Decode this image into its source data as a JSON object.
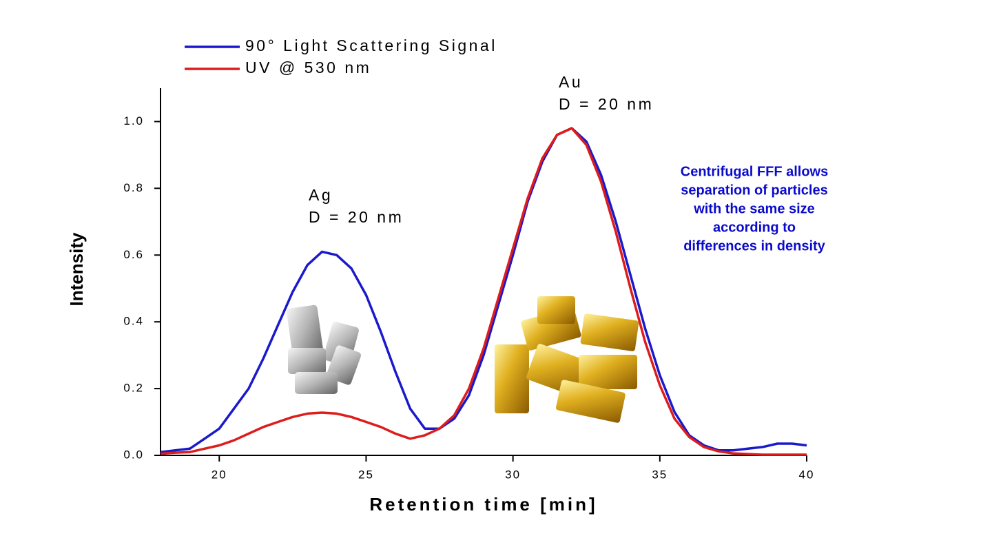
{
  "chart_data": {
    "type": "line",
    "x_label": "Retention time [min]",
    "y_label": "Intensity",
    "xlim": [
      18,
      40
    ],
    "xticks": [
      20,
      25,
      30,
      35,
      40
    ],
    "ylim": [
      0,
      1.1
    ],
    "yticks": [
      {
        "value": 0,
        "label": "0.0"
      },
      0.2,
      0.4,
      0.6,
      0.8,
      {
        "value": 1,
        "label": "1.0"
      }
    ],
    "x": [
      18,
      18.5,
      19,
      19.5,
      20,
      20.5,
      21,
      21.5,
      22,
      22.5,
      23,
      23.5,
      24,
      24.5,
      25,
      25.5,
      26,
      26.5,
      27,
      27.5,
      28,
      28.5,
      29,
      29.5,
      30,
      30.5,
      31,
      31.5,
      32,
      32.5,
      33,
      33.5,
      34,
      34.5,
      35,
      35.5,
      36,
      36.5,
      37,
      37.5,
      38,
      38.5,
      39,
      39.5,
      40
    ],
    "series": [
      {
        "name": "90° Light Scattering Signal",
        "color": "#1a1acc",
        "values": [
          0.01,
          0.015,
          0.02,
          0.05,
          0.08,
          0.14,
          0.2,
          0.29,
          0.39,
          0.49,
          0.57,
          0.61,
          0.6,
          0.56,
          0.48,
          0.37,
          0.25,
          0.14,
          0.08,
          0.08,
          0.11,
          0.18,
          0.3,
          0.45,
          0.6,
          0.76,
          0.88,
          0.96,
          0.98,
          0.94,
          0.84,
          0.7,
          0.54,
          0.38,
          0.24,
          0.13,
          0.06,
          0.03,
          0.015,
          0.015,
          0.02,
          0.025,
          0.035,
          0.035,
          0.03
        ]
      },
      {
        "name": "UV @ 530 nm",
        "color": "#dd1c1c",
        "values": [
          0.005,
          0.008,
          0.01,
          0.02,
          0.03,
          0.045,
          0.065,
          0.085,
          0.1,
          0.115,
          0.125,
          0.128,
          0.125,
          0.115,
          0.1,
          0.085,
          0.065,
          0.05,
          0.06,
          0.08,
          0.12,
          0.2,
          0.32,
          0.47,
          0.62,
          0.77,
          0.89,
          0.96,
          0.98,
          0.93,
          0.82,
          0.67,
          0.5,
          0.34,
          0.21,
          0.11,
          0.055,
          0.025,
          0.012,
          0.006,
          0.004,
          0.002,
          0.002,
          0.002,
          0.002
        ]
      }
    ],
    "annotations": [
      {
        "lines": [
          "Ag",
          "D = 20 nm"
        ]
      },
      {
        "lines": [
          "Au",
          "D = 20 nm"
        ]
      },
      {
        "lines": [
          "Centrifugal FFF allows",
          "separation of particles",
          "with the same size",
          "according to",
          "differences in density"
        ]
      }
    ]
  }
}
